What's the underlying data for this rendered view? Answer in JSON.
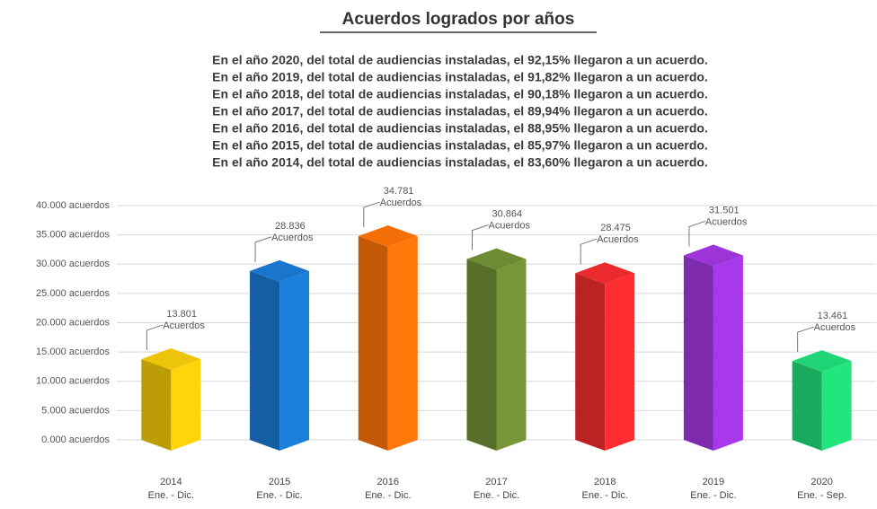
{
  "chart_data": {
    "type": "bar3d",
    "title": "Acuerdos logrados por años",
    "notes": [
      "En el año 2020, del total de audiencias instaladas, el 92,15% llegaron a un acuerdo.",
      "En el año 2019, del total de audiencias instaladas, el 91,82% llegaron a un acuerdo.",
      "En el año 2018, del total de audiencias instaladas, el 90,18% llegaron a un acuerdo.",
      "En el año 2017, del total de audiencias instaladas, el 89,94% llegaron a un acuerdo.",
      "En el año 2016, del total de audiencias instaladas, el 88,95% llegaron a un acuerdo.",
      "En el año 2015, del total de audiencias instaladas, el 85,97% llegaron a un acuerdo.",
      "En el año 2014, del total de audiencias instaladas, el 83,60% llegaron a un acuerdo."
    ],
    "categories": [
      "2014",
      "2015",
      "2016",
      "2017",
      "2018",
      "2019",
      "2020"
    ],
    "category_periods": [
      "Ene. - Dic.",
      "Ene. - Dic.",
      "Ene. - Dic.",
      "Ene. - Dic.",
      "Ene. - Dic.",
      "Ene. - Dic.",
      "Ene. - Sep."
    ],
    "values": [
      13801,
      28836,
      34781,
      30864,
      28475,
      31501,
      13461
    ],
    "value_labels": [
      "13.801",
      "28.836",
      "34.781",
      "30.864",
      "28.475",
      "31.501",
      "13.461"
    ],
    "data_label_unit": "Acuerdos",
    "colors": [
      "#ecc409",
      "#1976cc",
      "#f46f08",
      "#6e8b33",
      "#ea2a2c",
      "#9c34d8",
      "#1fd474"
    ],
    "ylim": [
      0,
      40000
    ],
    "yticks": [
      {
        "value": 0,
        "label": "0.000 acuerdos"
      },
      {
        "value": 5000,
        "label": "5.000 acuerdos"
      },
      {
        "value": 10000,
        "label": "10.000 acuerdos"
      },
      {
        "value": 15000,
        "label": "15.000 acuerdos"
      },
      {
        "value": 20000,
        "label": "20.000 acuerdos"
      },
      {
        "value": 25000,
        "label": "25.000 acuerdos"
      },
      {
        "value": 30000,
        "label": "30.000 acuerdos"
      },
      {
        "value": 35000,
        "label": "35.000 acuerdos"
      },
      {
        "value": 40000,
        "label": "40.000 acuerdos"
      }
    ],
    "grid": true
  }
}
